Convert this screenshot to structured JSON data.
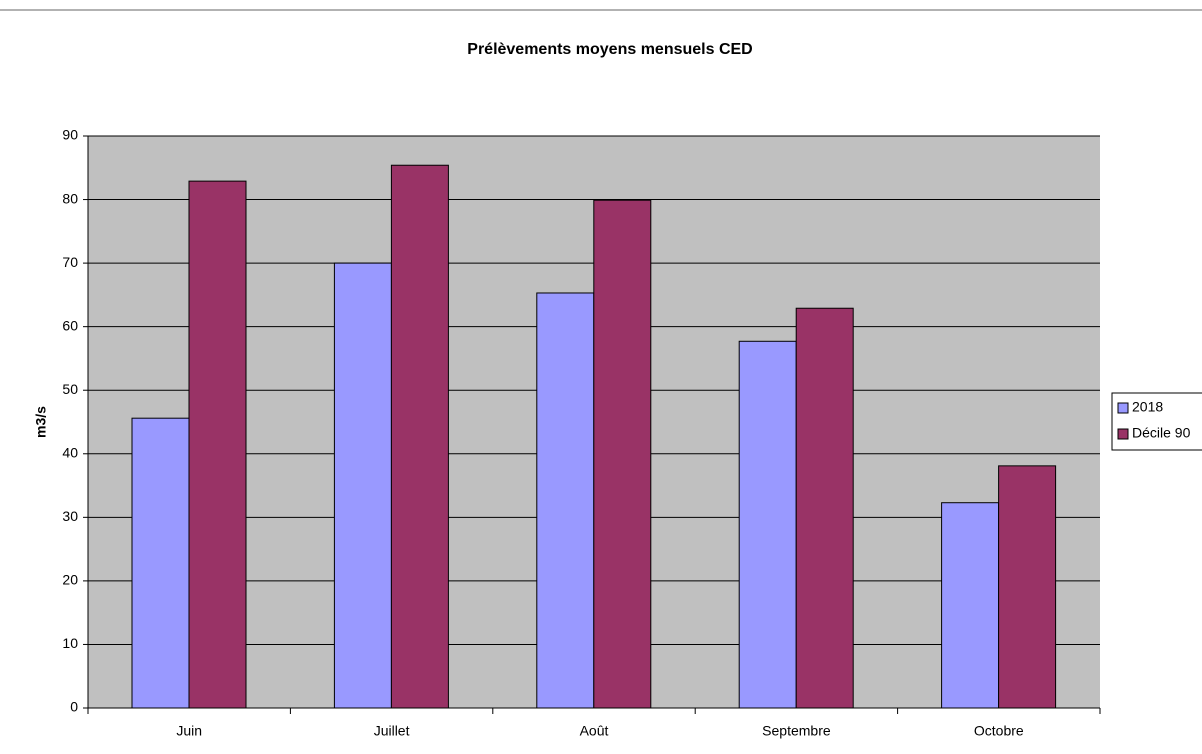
{
  "chart_data": {
    "type": "bar",
    "title": "Prélèvements moyens mensuels CED",
    "y_label": "m3/s",
    "categories": [
      "Juin",
      "Juillet",
      "Août",
      "Septembre",
      "Octobre"
    ],
    "series": [
      {
        "name": "2018",
        "color": "#9999ff",
        "values": [
          45.6,
          70.0,
          65.3,
          57.7,
          32.3
        ]
      },
      {
        "name": "Décile 90",
        "color": "#993366",
        "values": [
          82.9,
          85.4,
          79.9,
          62.9,
          38.1
        ]
      }
    ],
    "ylim": [
      0,
      90
    ],
    "yticks": [
      0,
      10,
      20,
      30,
      40,
      50,
      60,
      70,
      80,
      90
    ],
    "grid": true,
    "legend": "right",
    "plot_background": "#c0c0c0"
  }
}
